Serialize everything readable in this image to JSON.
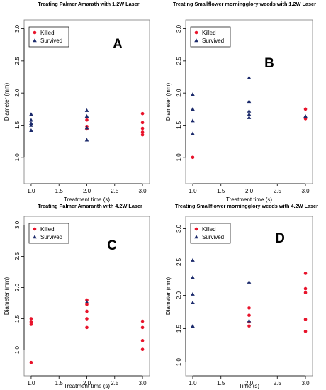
{
  "colors": {
    "killed": "#e8132b",
    "survived": "#1b2a6b",
    "axis": "#000000",
    "box": "#7a7a7a"
  },
  "chart_data": [
    {
      "type": "scatter",
      "title": "Treating Palmer Amarath with 1.2W Laser",
      "panel_label": "A",
      "xlabel": "Treatment time (s)",
      "ylabel": "Diameter (mm)",
      "xlim": [
        0.95,
        3.05
      ],
      "ylim": [
        0.7,
        3.05
      ],
      "xticks": [
        "1.0",
        "1.5",
        "2.0",
        "2.5",
        "3.0"
      ],
      "xtick_values": [
        1.0,
        1.5,
        2.0,
        2.5,
        3.0
      ],
      "yticks": [
        "1.0",
        "1.5",
        "2.0",
        "2.5",
        "3.0"
      ],
      "ytick_values": [
        1.0,
        1.5,
        2.0,
        2.5,
        3.0
      ],
      "legend": {
        "placement": "top-left",
        "entries": [
          "Killed",
          "Survived"
        ]
      },
      "series": [
        {
          "name": "Killed",
          "marker": "circle",
          "color": "#e8132b",
          "points": [
            [
              2.0,
              1.58
            ],
            [
              2.0,
              1.48
            ],
            [
              2.0,
              1.44
            ],
            [
              3.0,
              1.68
            ],
            [
              3.0,
              1.54
            ],
            [
              3.0,
              1.45
            ],
            [
              3.0,
              1.39
            ],
            [
              3.0,
              1.35
            ]
          ]
        },
        {
          "name": "Survived",
          "marker": "triangle",
          "color": "#1b2a6b",
          "points": [
            [
              1.0,
              1.67
            ],
            [
              1.0,
              1.58
            ],
            [
              1.0,
              1.53
            ],
            [
              1.0,
              1.5
            ],
            [
              1.0,
              1.42
            ],
            [
              2.0,
              1.73
            ],
            [
              2.0,
              1.64
            ],
            [
              2.0,
              1.46
            ],
            [
              2.0,
              1.27
            ]
          ]
        }
      ]
    },
    {
      "type": "scatter",
      "title": "Treating Smallflower morningglory weeds with 1.2W Laser",
      "panel_label": "B",
      "xlabel": "Treatment time (s)",
      "ylabel": "Diameter (mm)",
      "xlim": [
        0.95,
        3.05
      ],
      "ylim": [
        0.7,
        3.05
      ],
      "xticks": [
        "1.0",
        "1.5",
        "2.0",
        "2.5",
        "3.0"
      ],
      "xtick_values": [
        1.0,
        1.5,
        2.0,
        2.5,
        3.0
      ],
      "yticks": [
        "1.0",
        "1.5",
        "2.0",
        "2.5",
        "3.0"
      ],
      "ytick_values": [
        1.0,
        1.5,
        2.0,
        2.5,
        3.0
      ],
      "legend": {
        "placement": "top-left",
        "entries": [
          "Killed",
          "Survived"
        ]
      },
      "series": [
        {
          "name": "Killed",
          "marker": "circle",
          "color": "#e8132b",
          "points": [
            [
              1.0,
              1.0
            ],
            [
              3.0,
              1.75
            ],
            [
              3.0,
              1.62
            ],
            [
              3.0,
              1.6
            ]
          ]
        },
        {
          "name": "Survived",
          "marker": "triangle",
          "color": "#1b2a6b",
          "points": [
            [
              1.0,
              1.98
            ],
            [
              1.0,
              1.75
            ],
            [
              1.0,
              1.57
            ],
            [
              1.0,
              1.37
            ],
            [
              2.0,
              2.24
            ],
            [
              2.0,
              1.87
            ],
            [
              2.0,
              1.72
            ],
            [
              2.0,
              1.67
            ],
            [
              2.0,
              1.62
            ],
            [
              3.0,
              1.64
            ]
          ]
        }
      ]
    },
    {
      "type": "scatter",
      "title": "Treating Palmer Amaranth with 4.2W Laser",
      "panel_label": "C",
      "xlabel": "Treatment time (s)",
      "ylabel": "Diameter (mm)",
      "xlim": [
        0.95,
        3.05
      ],
      "ylim": [
        0.7,
        3.05
      ],
      "xticks": [
        "1.0",
        "1.5",
        "2.0",
        "2.5",
        "3.0"
      ],
      "xtick_values": [
        1.0,
        1.5,
        2.0,
        2.5,
        3.0
      ],
      "yticks": [
        "1.0",
        "1.5",
        "2.0",
        "2.5",
        "3.0"
      ],
      "ytick_values": [
        1.0,
        1.5,
        2.0,
        2.5,
        3.0
      ],
      "legend": {
        "placement": "top-left",
        "entries": [
          "Killed",
          "Survived"
        ]
      },
      "series": [
        {
          "name": "Killed",
          "marker": "circle",
          "color": "#e8132b",
          "points": [
            [
              1.0,
              1.5
            ],
            [
              1.0,
              1.45
            ],
            [
              1.0,
              1.41
            ],
            [
              1.0,
              0.8
            ],
            [
              2.0,
              1.8
            ],
            [
              2.0,
              1.73
            ],
            [
              2.0,
              1.62
            ],
            [
              2.0,
              1.5
            ],
            [
              2.0,
              1.36
            ],
            [
              3.0,
              1.46
            ],
            [
              3.0,
              1.36
            ],
            [
              3.0,
              1.15
            ],
            [
              3.0,
              1.01
            ]
          ]
        },
        {
          "name": "Survived",
          "marker": "triangle",
          "color": "#1b2a6b",
          "points": [
            [
              2.0,
              1.77
            ]
          ]
        }
      ]
    },
    {
      "type": "scatter",
      "title": "Treating Smallflower morningglory weeds with 4.2W Laser",
      "panel_label": "D",
      "xlabel": "Time (s)",
      "ylabel": "Diameter (mm)",
      "xlim": [
        0.95,
        3.05
      ],
      "ylim": [
        0.9,
        3.1
      ],
      "xticks": [
        "1.0",
        "1.5",
        "2.0",
        "2.5",
        "3.0"
      ],
      "xtick_values": [
        1.0,
        1.5,
        2.0,
        2.5,
        3.0
      ],
      "yticks": [
        "1.0",
        "1.5",
        "2.0",
        "2.5",
        "3.0"
      ],
      "ytick_values": [
        1.0,
        1.5,
        2.0,
        2.5,
        3.0
      ],
      "legend": {
        "placement": "top-left",
        "entries": [
          "Killed",
          "Survived"
        ]
      },
      "series": [
        {
          "name": "Killed",
          "marker": "circle",
          "color": "#e8132b",
          "points": [
            [
              2.0,
              1.81
            ],
            [
              2.0,
              1.7
            ],
            [
              2.0,
              1.6
            ],
            [
              2.0,
              1.54
            ],
            [
              3.0,
              2.33
            ],
            [
              3.0,
              2.1
            ],
            [
              3.0,
              2.04
            ],
            [
              3.0,
              1.64
            ],
            [
              3.0,
              1.46
            ]
          ]
        },
        {
          "name": "Survived",
          "marker": "triangle",
          "color": "#1b2a6b",
          "points": [
            [
              1.0,
              2.53
            ],
            [
              1.0,
              2.27
            ],
            [
              1.0,
              2.02
            ],
            [
              1.0,
              1.89
            ],
            [
              1.0,
              1.54
            ],
            [
              2.0,
              2.2
            ],
            [
              2.0,
              1.62
            ]
          ]
        }
      ]
    }
  ]
}
